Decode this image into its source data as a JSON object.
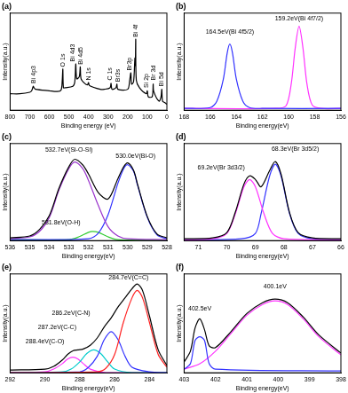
{
  "chart_data": [
    {
      "type": "line",
      "title": "(a)",
      "x_label": "Binding energy (eV)",
      "y_label": "Intensity(a.u.)",
      "xlim": [
        800,
        0
      ],
      "xticks": [
        800,
        700,
        600,
        500,
        400,
        300,
        200,
        100,
        0
      ],
      "ylim": [
        0,
        130
      ],
      "tick_labels": "x",
      "grid": false,
      "series": [
        {
          "color": "#000000",
          "x": [
            800,
            750,
            700,
            690,
            682,
            678,
            670,
            600,
            560,
            540,
            534,
            531,
            528,
            520,
            480,
            470,
            465,
            460,
            447,
            442,
            438,
            420,
            405,
            400,
            395,
            340,
            320,
            290,
            285,
            280,
            260,
            255,
            250,
            200,
            190,
            184,
            180,
            170,
            163,
            161,
            159,
            156,
            140,
            105,
            100,
            95,
            75,
            70,
            67,
            40,
            30,
            26,
            22,
            10,
            0
          ],
          "values": [
            22,
            22,
            24,
            26,
            32,
            30,
            28,
            26,
            25,
            27,
            40,
            55,
            30,
            30,
            32,
            38,
            62,
            42,
            45,
            58,
            42,
            36,
            34,
            37,
            33,
            28,
            28,
            30,
            36,
            28,
            30,
            35,
            28,
            28,
            40,
            50,
            35,
            38,
            70,
            60,
            95,
            40,
            30,
            22,
            26,
            18,
            18,
            35,
            25,
            12,
            18,
            28,
            12,
            10,
            8
          ]
        }
      ],
      "annotations": [
        {
          "text": "Bi 4p3",
          "x": 680,
          "y": 36
        },
        {
          "text": "O 1s",
          "x": 530,
          "y": 58
        },
        {
          "text": "Bi 4d3",
          "x": 482,
          "y": 65
        },
        {
          "text": "Bi 4d5",
          "x": 440,
          "y": 61
        },
        {
          "text": "N 1s",
          "x": 400,
          "y": 40
        },
        {
          "text": "C 1s",
          "x": 290,
          "y": 40
        },
        {
          "text": "Br3s",
          "x": 248,
          "y": 38
        },
        {
          "text": "Br3p",
          "x": 190,
          "y": 53
        },
        {
          "text": "Bi 4f",
          "x": 159,
          "y": 98
        },
        {
          "text": "Si 2p",
          "x": 105,
          "y": 30
        },
        {
          "text": "Br 3d",
          "x": 68,
          "y": 40
        },
        {
          "text": "Bi 5d",
          "x": 28,
          "y": 32
        }
      ]
    },
    {
      "type": "line",
      "title": "(b)",
      "x_label": "Binding energy(eV)",
      "y_label": "Intensity(a.u.)",
      "xlim": [
        168,
        156
      ],
      "xticks": [
        168,
        166,
        164,
        162,
        160,
        158,
        156
      ],
      "ylim": [
        0,
        110
      ],
      "tick_labels": "x",
      "grid": false,
      "series": [
        {
          "color": "#3333ff",
          "x": [
            168,
            166,
            165.5,
            165,
            164.7,
            164.5,
            164.3,
            164,
            163.5,
            163,
            162,
            156
          ],
          "values": [
            2,
            3,
            10,
            35,
            65,
            75,
            65,
            35,
            10,
            3,
            2,
            2
          ]
        },
        {
          "color": "#ff33ff",
          "x": [
            168,
            161,
            160.2,
            159.8,
            159.5,
            159.2,
            158.9,
            158.6,
            158.2,
            157.5,
            156
          ],
          "values": [
            2,
            2,
            5,
            30,
            70,
            95,
            70,
            30,
            6,
            2,
            2
          ]
        }
      ],
      "annotations": [
        {
          "text": "164.5eV(Bi 4f5/2)",
          "x": 164.5,
          "y": 85
        },
        {
          "text": "159.2eV(Bi 4f7/2)",
          "x": 159.2,
          "y": 100
        }
      ]
    },
    {
      "type": "line",
      "title": "(c)",
      "x_label": "Binding energy(eV)",
      "y_label": "Intensity(a.u.)",
      "xlim": [
        536,
        528
      ],
      "xticks": [
        536,
        535,
        534,
        533,
        532,
        531,
        530,
        529,
        528
      ],
      "ylim": [
        0,
        105
      ],
      "tick_labels": "x",
      "grid": false,
      "series": [
        {
          "color": "#000000",
          "x": [
            536,
            535,
            534.5,
            534,
            533.5,
            533,
            532.7,
            532.3,
            532,
            531.5,
            531,
            530.5,
            530.2,
            530,
            529.7,
            529.5,
            529,
            528.5,
            528
          ],
          "values": [
            3,
            5,
            12,
            27,
            57,
            80,
            88,
            82,
            72,
            52,
            45,
            67,
            80,
            84,
            76,
            61,
            26,
            7,
            3
          ]
        },
        {
          "color": "#9933cc",
          "x": [
            536,
            535,
            534.5,
            534,
            533.5,
            533,
            532.7,
            532.3,
            532,
            531.5,
            531,
            530.5,
            530,
            528
          ],
          "values": [
            2,
            4,
            10,
            25,
            55,
            78,
            85,
            78,
            65,
            38,
            15,
            5,
            2,
            1
          ]
        },
        {
          "color": "#3333ff",
          "x": [
            536,
            532,
            531.5,
            531,
            530.5,
            530.2,
            530,
            529.7,
            529.5,
            529,
            528.5,
            528
          ],
          "values": [
            1,
            2,
            8,
            28,
            62,
            78,
            82,
            75,
            60,
            25,
            6,
            2
          ]
        },
        {
          "color": "#33cc33",
          "x": [
            536,
            533,
            532.5,
            532,
            531.8,
            531.5,
            531,
            530.5,
            528
          ],
          "values": [
            1,
            1,
            4,
            9,
            10,
            9,
            4,
            1,
            0
          ]
        }
      ],
      "annotations": [
        {
          "text": "532.7eV(Si-O-Si)",
          "x": 533.0,
          "y": 95
        },
        {
          "text": "530.0eV(Bi-O)",
          "x": 529.6,
          "y": 88
        },
        {
          "text": "531.8eV(O-H)",
          "x": 533.4,
          "y": 16
        }
      ]
    },
    {
      "type": "line",
      "title": "(d)",
      "x_label": "Binding energy(eV)",
      "y_label": "Intensity(a.u.)",
      "xlim": [
        71.5,
        66
      ],
      "xticks": [
        71,
        70,
        69,
        68,
        67,
        66
      ],
      "ylim": [
        0,
        108
      ],
      "tick_labels": "x",
      "grid": false,
      "series": [
        {
          "color": "#000000",
          "x": [
            71.5,
            70.5,
            70,
            69.7,
            69.4,
            69.2,
            69,
            68.8,
            68.5,
            68.3,
            68.1,
            67.8,
            67.5,
            67,
            66
          ],
          "values": [
            2,
            3,
            9,
            32,
            63,
            72,
            68,
            60,
            78,
            88,
            74,
            31,
            9,
            3,
            2
          ]
        },
        {
          "color": "#ff33ff",
          "x": [
            71.5,
            70.5,
            70,
            69.7,
            69.4,
            69.2,
            69,
            68.7,
            68.4,
            68,
            66
          ],
          "values": [
            1,
            2,
            8,
            30,
            60,
            68,
            60,
            30,
            8,
            2,
            1
          ]
        },
        {
          "color": "#3333ff",
          "x": [
            71.5,
            69.5,
            69,
            68.8,
            68.5,
            68.3,
            68.1,
            67.8,
            67.5,
            67,
            66
          ],
          "values": [
            1,
            2,
            8,
            30,
            72,
            85,
            72,
            30,
            8,
            2,
            1
          ]
        }
      ],
      "annotations": [
        {
          "text": "69.2eV(Br 3d3/2)",
          "x": 70.2,
          "y": 78
        },
        {
          "text": "68.3eV(Br 3d5/2)",
          "x": 67.6,
          "y": 98
        }
      ]
    },
    {
      "type": "line",
      "title": "(e)",
      "x_label": "Binding energy(eV)",
      "y_label": "Intensity(a.u.)",
      "xlim": [
        292,
        283
      ],
      "xticks": [
        292,
        290,
        288,
        286,
        284
      ],
      "ylim": [
        0,
        108
      ],
      "tick_labels": "x",
      "grid": false,
      "series": [
        {
          "color": "#000000",
          "x": [
            292,
            290,
            289.5,
            289,
            288.7,
            288.4,
            288.1,
            287.8,
            287.4,
            287,
            286.6,
            286.2,
            285.8,
            285.4,
            285,
            284.7,
            284.4,
            284,
            283.5,
            283
          ],
          "values": [
            3,
            4,
            7,
            14,
            20,
            24,
            25,
            26,
            30,
            38,
            50,
            60,
            72,
            82,
            92,
            97,
            90,
            62,
            25,
            8
          ]
        },
        {
          "color": "#ff2222",
          "x": [
            292,
            287,
            286.5,
            286,
            285.5,
            285,
            284.7,
            284.4,
            284,
            283.5,
            283
          ],
          "values": [
            0,
            1,
            5,
            20,
            55,
            82,
            90,
            82,
            55,
            20,
            6
          ]
        },
        {
          "color": "#3333ff",
          "x": [
            292,
            288,
            287.5,
            287,
            286.6,
            286.2,
            285.8,
            285.4,
            285,
            284,
            283
          ],
          "values": [
            0,
            1,
            6,
            18,
            36,
            45,
            36,
            18,
            6,
            1,
            0
          ]
        },
        {
          "color": "#00cccc",
          "x": [
            292,
            289,
            288.5,
            288,
            287.6,
            287.2,
            286.8,
            286.4,
            286,
            285,
            283
          ],
          "values": [
            0,
            1,
            4,
            12,
            21,
            25,
            21,
            12,
            4,
            0,
            0
          ]
        },
        {
          "color": "#ff33ff",
          "x": [
            292,
            290,
            289.5,
            289,
            288.7,
            288.4,
            288.1,
            287.8,
            287.4,
            286.5,
            283
          ],
          "values": [
            0,
            1,
            4,
            10,
            15,
            17,
            15,
            10,
            4,
            0,
            0
          ]
        }
      ],
      "annotations": [
        {
          "text": "284.7eV(C=C)",
          "x": 285.2,
          "y": 100
        },
        {
          "text": "286.2eV(C-N)",
          "x": 288.5,
          "y": 62
        },
        {
          "text": "287.2eV(C-C)",
          "x": 289.3,
          "y": 46
        },
        {
          "text": "288.4eV(C-O)",
          "x": 290.0,
          "y": 31
        }
      ]
    },
    {
      "type": "line",
      "title": "(f)",
      "x_label": "Binding energy(eV)",
      "y_label": "Intensity(a.u.)",
      "xlim": [
        403,
        398
      ],
      "xticks": [
        403,
        402,
        401,
        400,
        399,
        398
      ],
      "ylim": [
        0,
        55
      ],
      "tick_labels": "x",
      "grid": false,
      "series": [
        {
          "color": "#000000",
          "x": [
            403,
            402.8,
            402.65,
            402.5,
            402.35,
            402.2,
            402,
            401.5,
            401,
            400.5,
            400.1,
            399.7,
            399.2,
            398.7,
            398
          ],
          "values": [
            6,
            12,
            25,
            30,
            24,
            15,
            14,
            23,
            33,
            39,
            41,
            39,
            31,
            21,
            11
          ]
        },
        {
          "color": "#3333ff",
          "x": [
            403,
            402.8,
            402.65,
            402.5,
            402.35,
            402.2,
            402,
            398
          ],
          "values": [
            2,
            5,
            18,
            20,
            18,
            5,
            2,
            1
          ]
        },
        {
          "color": "#ff33ff",
          "x": [
            403,
            402.5,
            402,
            401.5,
            401,
            400.5,
            400.1,
            399.7,
            399.2,
            398.7,
            398
          ],
          "values": [
            2,
            5,
            12,
            22,
            32,
            38,
            40,
            38,
            30,
            20,
            10
          ]
        }
      ],
      "annotations": [
        {
          "text": "402.5eV",
          "x": 402.5,
          "y": 34
        },
        {
          "text": "400.1eV",
          "x": 400.1,
          "y": 46
        }
      ]
    }
  ]
}
